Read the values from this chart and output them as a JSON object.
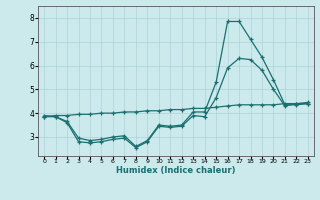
{
  "xlabel": "Humidex (Indice chaleur)",
  "xlim": [
    -0.5,
    23.5
  ],
  "ylim": [
    2.2,
    8.5
  ],
  "yticks": [
    3,
    4,
    5,
    6,
    7,
    8
  ],
  "xticks": [
    0,
    1,
    2,
    3,
    4,
    5,
    6,
    7,
    8,
    9,
    10,
    11,
    12,
    13,
    14,
    15,
    16,
    17,
    18,
    19,
    20,
    21,
    22,
    23
  ],
  "bg_color": "#cce9ec",
  "grid_color": "#aad4d8",
  "line_color": "#1a7070",
  "line1_x": [
    0,
    1,
    2,
    3,
    4,
    5,
    6,
    7,
    8,
    9,
    10,
    11,
    12,
    13,
    14,
    15,
    16,
    17,
    18,
    19,
    20,
    21,
    22,
    23
  ],
  "line1_y": [
    3.9,
    3.85,
    3.65,
    2.95,
    2.85,
    2.9,
    3.0,
    3.05,
    2.6,
    2.85,
    3.5,
    3.45,
    3.5,
    4.05,
    4.05,
    5.3,
    7.85,
    7.85,
    7.1,
    6.35,
    5.4,
    4.35,
    4.35,
    4.4
  ],
  "line2_x": [
    0,
    1,
    2,
    3,
    4,
    5,
    6,
    7,
    8,
    9,
    10,
    11,
    12,
    13,
    14,
    15,
    16,
    17,
    18,
    19,
    20,
    21,
    22,
    23
  ],
  "line2_y": [
    3.85,
    3.85,
    3.6,
    2.8,
    2.75,
    2.8,
    2.9,
    2.95,
    2.55,
    2.8,
    3.45,
    3.4,
    3.45,
    3.9,
    3.85,
    4.65,
    5.9,
    6.3,
    6.25,
    5.8,
    5.0,
    4.3,
    4.4,
    4.4
  ],
  "line3_x": [
    0,
    1,
    2,
    3,
    4,
    5,
    6,
    7,
    8,
    9,
    10,
    11,
    12,
    13,
    14,
    15,
    16,
    17,
    18,
    19,
    20,
    21,
    22,
    23
  ],
  "line3_y": [
    3.85,
    3.9,
    3.9,
    3.95,
    3.95,
    4.0,
    4.0,
    4.05,
    4.05,
    4.1,
    4.1,
    4.15,
    4.15,
    4.2,
    4.2,
    4.25,
    4.3,
    4.35,
    4.35,
    4.35,
    4.35,
    4.4,
    4.4,
    4.45
  ]
}
